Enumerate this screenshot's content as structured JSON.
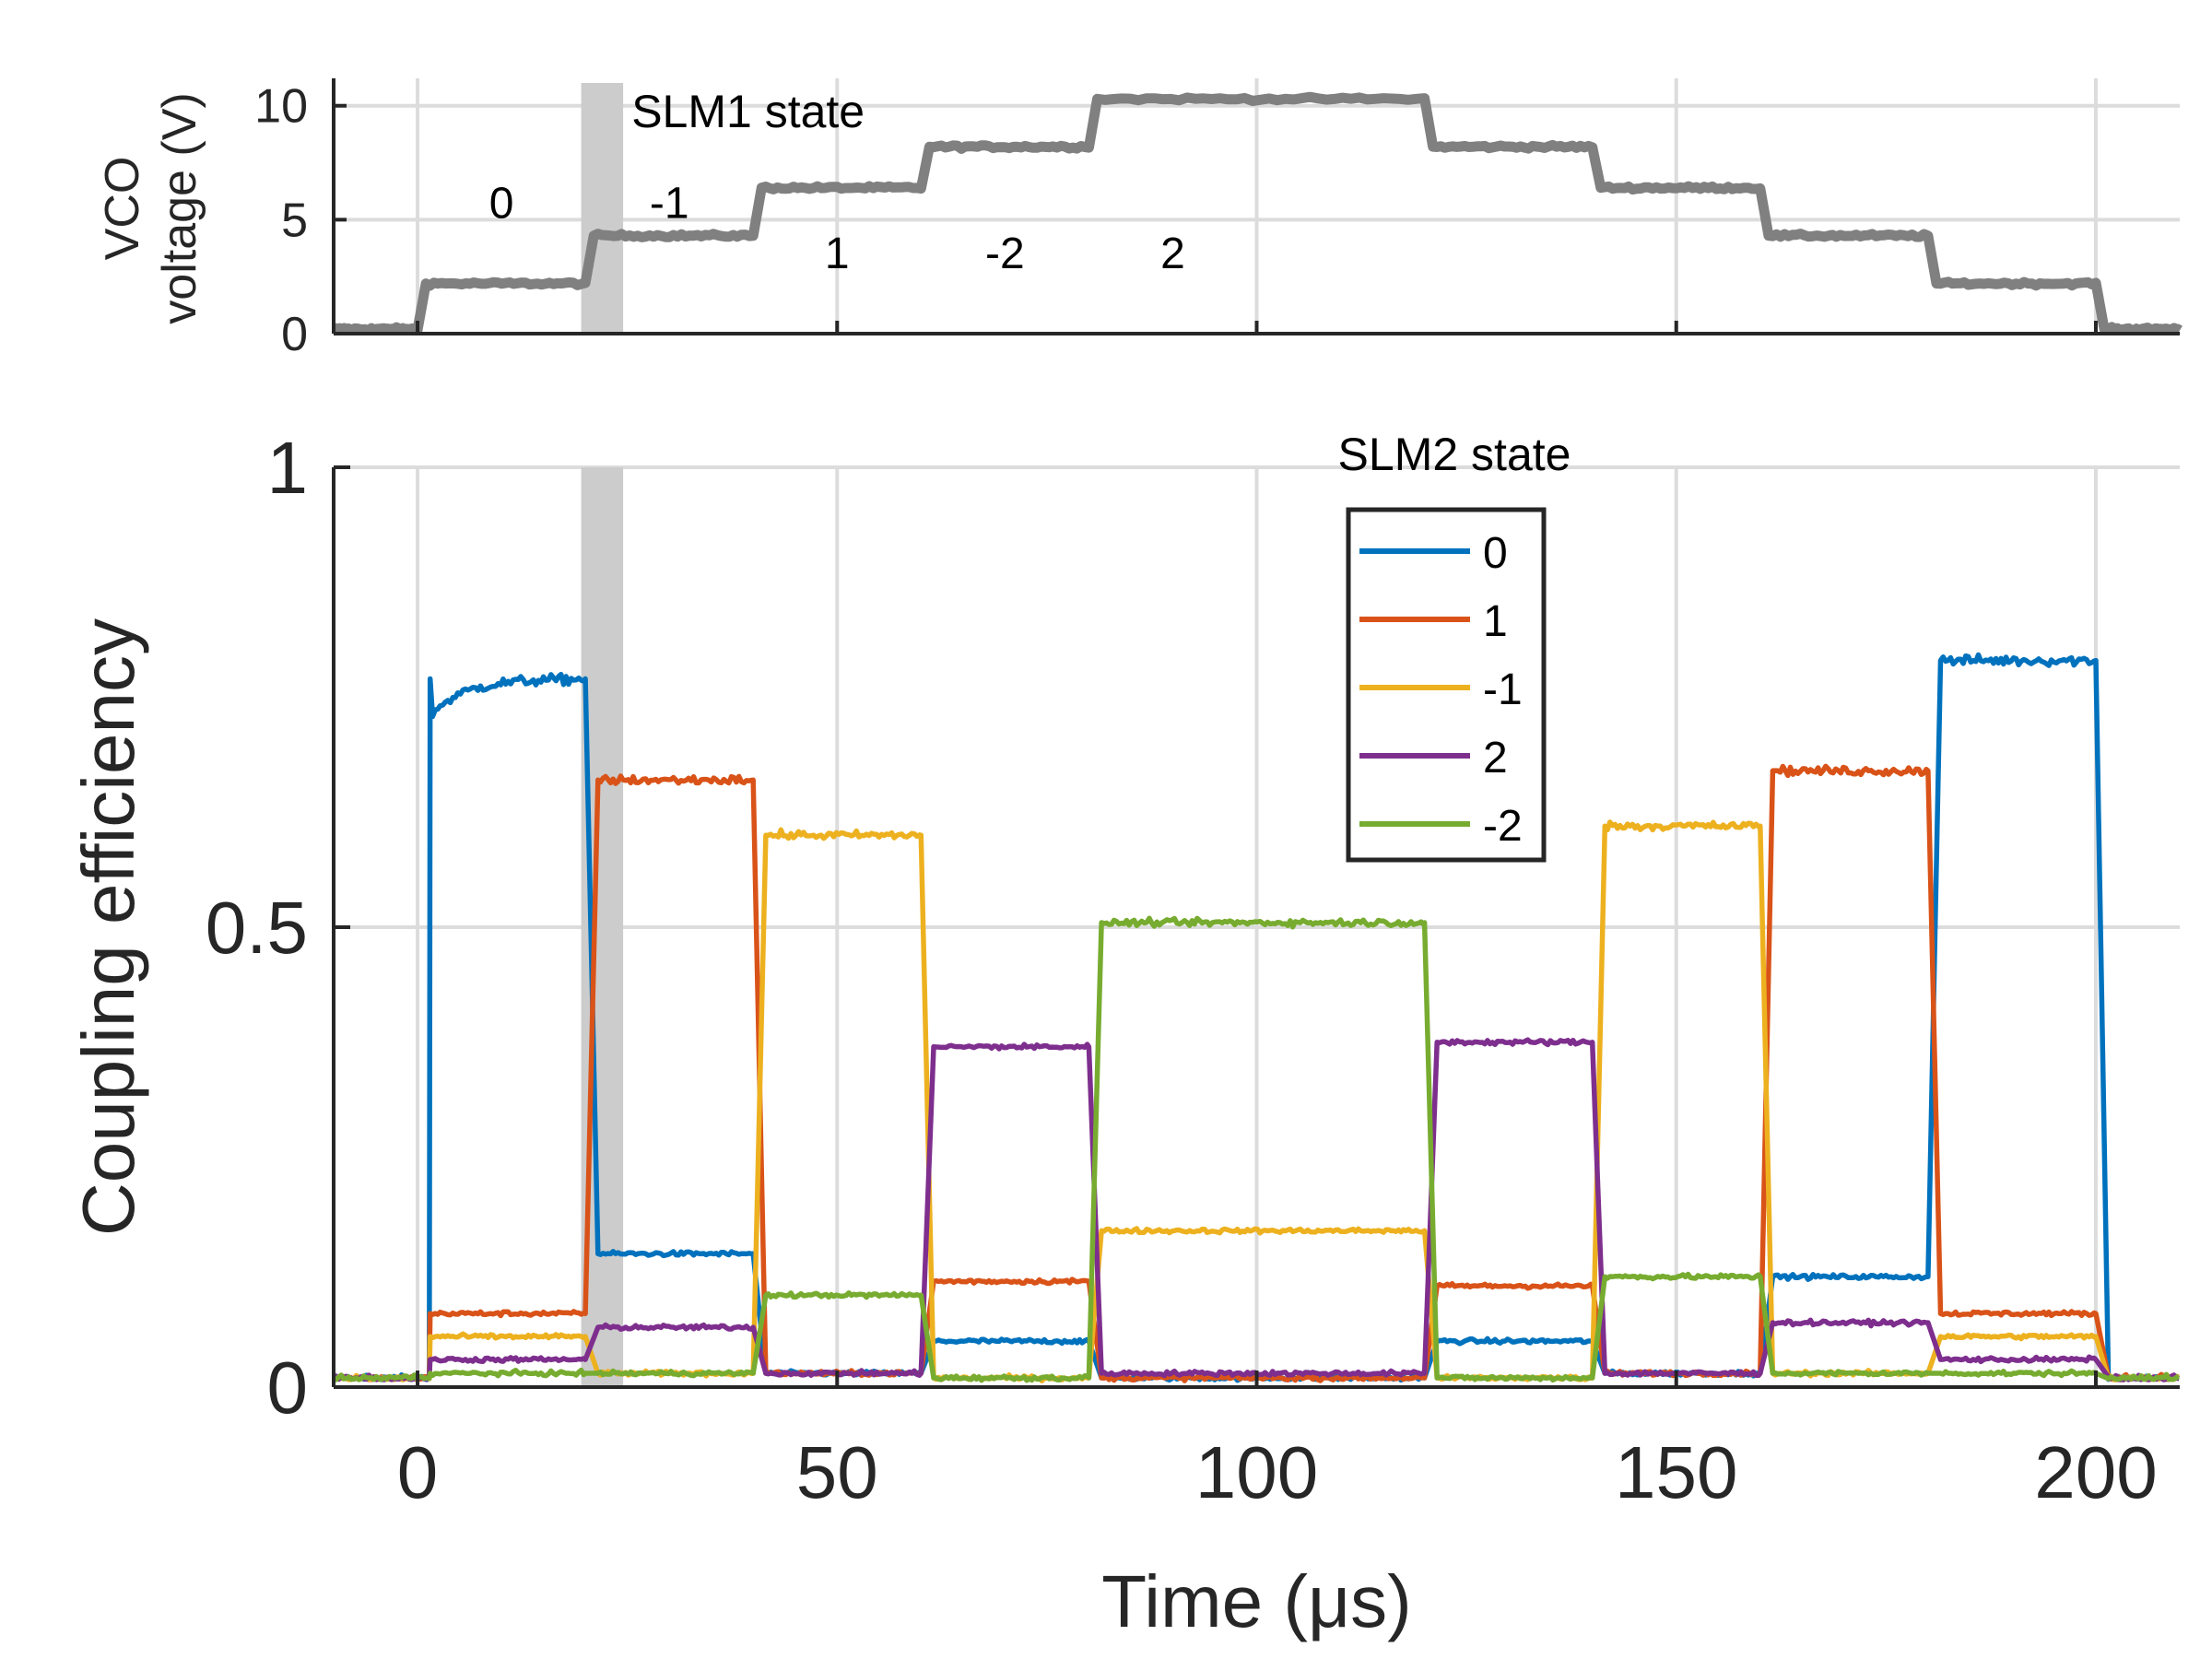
{
  "chart_data": [
    {
      "type": "line",
      "panel": "top",
      "ylabel_line1": "VCO",
      "ylabel_line2": "voltage (V)",
      "ylim": [
        0,
        11
      ],
      "yticks": [
        0,
        5,
        10
      ],
      "ytick_labels": [
        "0",
        "5",
        "10"
      ],
      "xlim": [
        -10,
        210
      ],
      "grid": true,
      "title_annotation": "SLM1 state",
      "state_labels": [
        {
          "text": "0",
          "x": 10,
          "y": 5.8
        },
        {
          "text": "-1",
          "x": 30,
          "y": 5.8
        },
        {
          "text": "1",
          "x": 50,
          "y": 3.6
        },
        {
          "text": "-2",
          "x": 70,
          "y": 3.6
        },
        {
          "text": "2",
          "x": 90,
          "y": 3.6
        }
      ],
      "highlight_band": [
        19.5,
        24.5
      ],
      "line_color": "#808080",
      "series": [
        {
          "x": [
            -10,
            0,
            1,
            20,
            21,
            40,
            41,
            60,
            61,
            80,
            81,
            120,
            121,
            140,
            141,
            160,
            161,
            180,
            181,
            200,
            201,
            210
          ],
          "values": [
            0.2,
            0.2,
            2.2,
            2.2,
            4.3,
            4.3,
            6.4,
            6.4,
            8.2,
            8.2,
            10.3,
            10.3,
            8.2,
            8.2,
            6.4,
            6.4,
            4.3,
            4.3,
            2.2,
            2.2,
            0.2,
            0.2
          ]
        }
      ]
    },
    {
      "type": "line",
      "panel": "bottom",
      "xlabel": "Time (μs)",
      "ylabel": "Coupling efficiency",
      "xlim": [
        -10,
        210
      ],
      "ylim": [
        0,
        1
      ],
      "xticks": [
        0,
        50,
        100,
        150,
        200
      ],
      "xtick_labels": [
        "0",
        "50",
        "100",
        "150",
        "200"
      ],
      "yticks": [
        0,
        0.5,
        1
      ],
      "ytick_labels": [
        "0",
        "0.5",
        "1"
      ],
      "grid": true,
      "highlight_band": [
        19.5,
        24.5
      ],
      "legend_title": "SLM2 state",
      "legend_position": "upper-center",
      "segments": [
        0,
        20,
        40,
        60,
        80,
        120,
        140,
        160,
        180,
        200
      ],
      "series": [
        {
          "name": "0",
          "color": "#0072BD",
          "levels": [
            0.77,
            0.145,
            0.015,
            0.05,
            0.01,
            0.05,
            0.015,
            0.12,
            0.79
          ]
        },
        {
          "name": "1",
          "color": "#D95319",
          "levels": [
            0.08,
            0.66,
            0.015,
            0.115,
            0.01,
            0.11,
            0.015,
            0.67,
            0.08
          ]
        },
        {
          "name": "-1",
          "color": "#EDB120",
          "levels": [
            0.055,
            0.015,
            0.6,
            0.01,
            0.17,
            0.01,
            0.61,
            0.015,
            0.055
          ]
        },
        {
          "name": "2",
          "color": "#7E2F8E",
          "levels": [
            0.03,
            0.065,
            0.015,
            0.37,
            0.015,
            0.375,
            0.015,
            0.07,
            0.03
          ]
        },
        {
          "name": "-2",
          "color": "#77AC30",
          "levels": [
            0.015,
            0.015,
            0.1,
            0.01,
            0.505,
            0.01,
            0.12,
            0.015,
            0.015
          ]
        }
      ]
    }
  ]
}
